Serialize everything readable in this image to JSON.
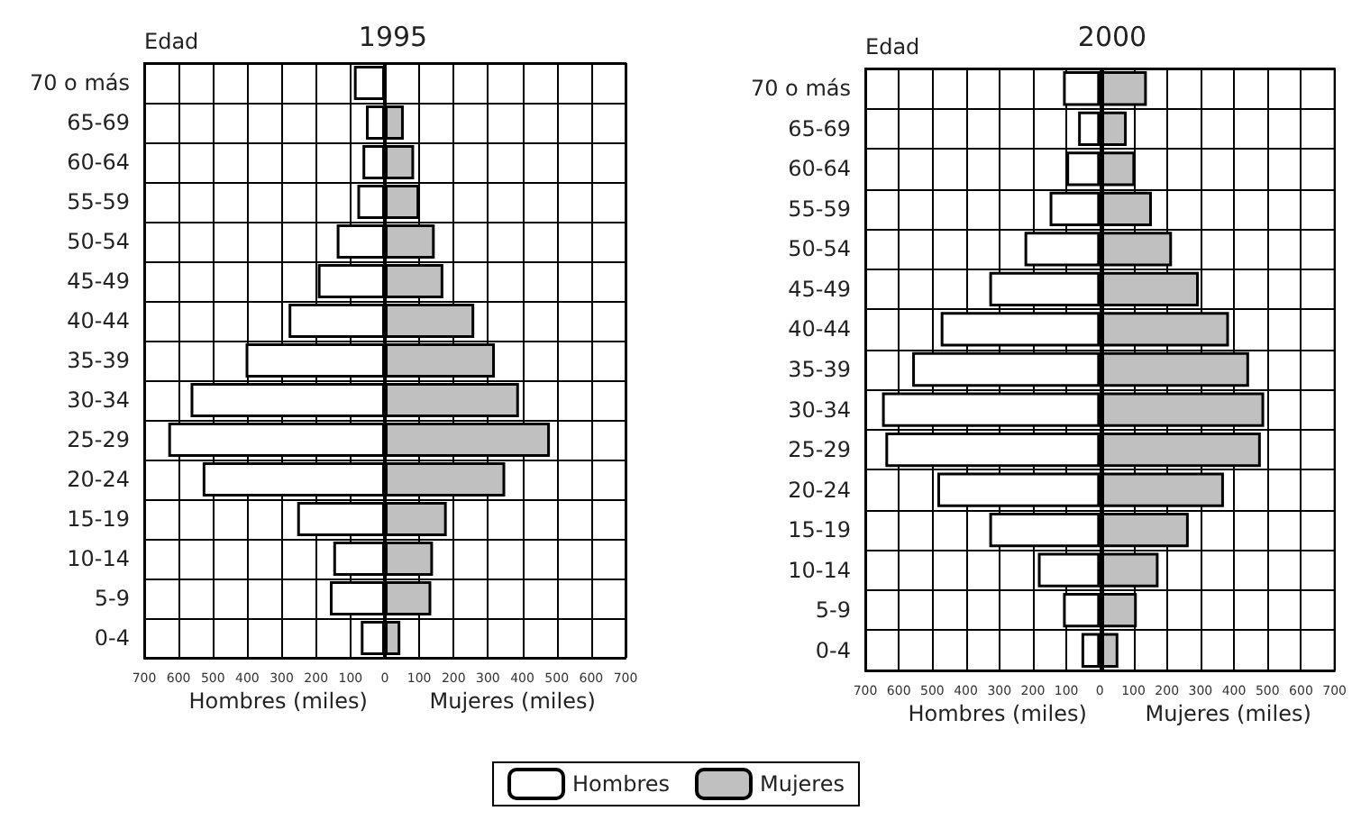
{
  "chart_data": [
    {
      "type": "bar",
      "orientation": "horizontal",
      "title": "1995",
      "ylabel": "Edad",
      "xlabel": "Hombres (miles)",
      "annotations": [
        "Mujeres (miles)"
      ],
      "categories": [
        "70 o más",
        "65-69",
        "60-64",
        "55-59",
        "50-54",
        "45-49",
        "40-44",
        "35-39",
        "30-34",
        "25-29",
        "20-24",
        "15-19",
        "10-14",
        "5-9",
        "0-4"
      ],
      "series": [
        {
          "name": "Hombres",
          "color": "#ffffff",
          "values": [
            -90,
            -55,
            -65,
            -80,
            -140,
            -195,
            -280,
            -405,
            -565,
            -630,
            -530,
            -255,
            -150,
            -160,
            -70
          ]
        },
        {
          "name": "Mujeres",
          "color": "#c0c0c0",
          "values": [
            null,
            55,
            85,
            100,
            145,
            170,
            260,
            320,
            390,
            480,
            350,
            180,
            140,
            135,
            45
          ]
        }
      ],
      "xlim": [
        -700,
        700
      ],
      "xticks": [
        {
          "value": -700,
          "label": "700"
        },
        {
          "value": -600,
          "label": "600"
        },
        {
          "value": -500,
          "label": "500"
        },
        {
          "value": -400,
          "label": "400"
        },
        {
          "value": -300,
          "label": "300"
        },
        {
          "value": -200,
          "label": "200"
        },
        {
          "value": -100,
          "label": "100"
        },
        0,
        100,
        200,
        300,
        400,
        500,
        600,
        700
      ],
      "stacked": true,
      "grid": true,
      "legend": "bottom"
    },
    {
      "type": "bar",
      "orientation": "horizontal",
      "title": "2000",
      "ylabel": "Edad",
      "xlabel": "Hombres (miles)",
      "annotations": [
        "Mujeres (miles)"
      ],
      "categories": [
        "70 o más",
        "65-69",
        "60-64",
        "55-59",
        "50-54",
        "45-49",
        "40-44",
        "35-39",
        "30-34",
        "25-29",
        "20-24",
        "15-19",
        "10-14",
        "5-9",
        "0-4"
      ],
      "series": [
        {
          "name": "Hombres",
          "color": "#ffffff",
          "values": [
            -110,
            -65,
            -100,
            -150,
            -225,
            -330,
            -475,
            -560,
            -650,
            -640,
            -485,
            -330,
            -185,
            -110,
            -55
          ]
        },
        {
          "name": "Mujeres",
          "color": "#c0c0c0",
          "values": [
            140,
            80,
            105,
            155,
            215,
            295,
            385,
            445,
            490,
            480,
            370,
            265,
            175,
            110,
            55
          ]
        }
      ],
      "xlim": [
        -700,
        700
      ],
      "xticks": [
        {
          "value": -700,
          "label": "700"
        },
        {
          "value": -600,
          "label": "600"
        },
        {
          "value": -500,
          "label": "500"
        },
        {
          "value": -400,
          "label": "400"
        },
        {
          "value": -300,
          "label": "300"
        },
        {
          "value": -200,
          "label": "200"
        },
        {
          "value": -100,
          "label": "100"
        },
        0,
        100,
        200,
        300,
        400,
        500,
        600,
        700
      ],
      "stacked": true,
      "grid": true,
      "legend": "bottom"
    }
  ]
}
